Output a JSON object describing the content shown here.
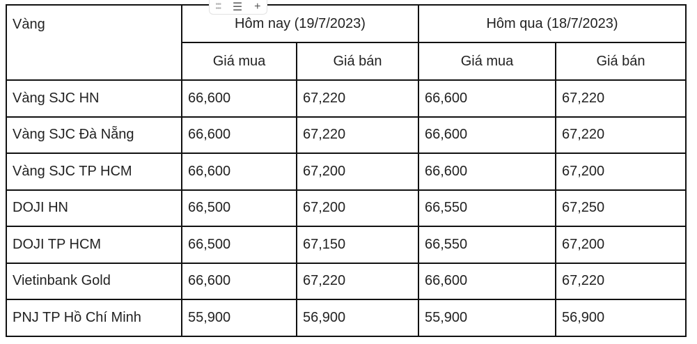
{
  "toolbar": {
    "icons": [
      "drag-handle-icon",
      "align-icon",
      "plus-icon"
    ]
  },
  "header": {
    "col0": "Vàng",
    "today": "Hôm nay (19/7/2023)",
    "yesterday": "Hôm qua (18/7/2023)",
    "buy": "Giá mua",
    "sell": "Giá bán"
  },
  "rows": [
    [
      "Vàng SJC HN",
      "66,600",
      "67,220",
      "66,600",
      "67,220"
    ],
    [
      "Vàng SJC Đà Nẵng",
      "66,600",
      "67,220",
      "66,600",
      "67,220"
    ],
    [
      "Vàng SJC TP HCM",
      "66,600",
      "67,200",
      "66,600",
      "67,200"
    ],
    [
      "DOJI HN",
      "66,500",
      "67,200",
      "66,550",
      "67,250"
    ],
    [
      "DOJI TP HCM",
      "66,500",
      "67,150",
      "66,550",
      "67,200"
    ],
    [
      "Vietinbank Gold",
      "66,600",
      "67,220",
      "66,600",
      "67,220"
    ],
    [
      "PNJ TP Hồ Chí Minh",
      "55,900",
      "56,900",
      "55,900",
      "56,900"
    ]
  ]
}
